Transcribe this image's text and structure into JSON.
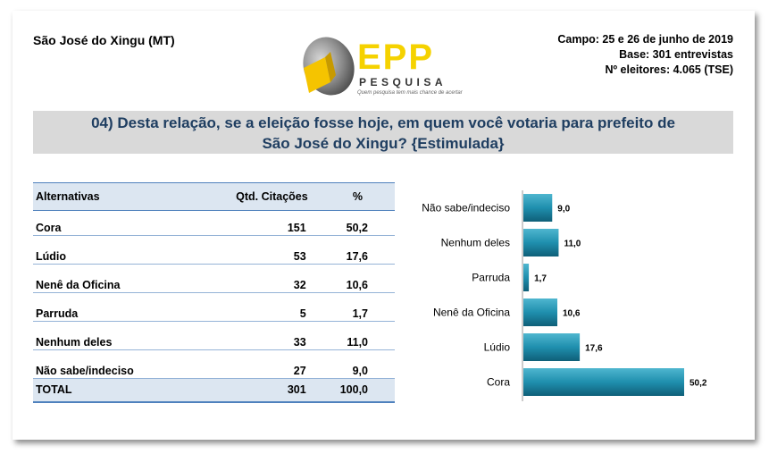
{
  "header": {
    "city": "São José do Xingu (MT)",
    "campo": "Campo: 25 e 26 de junho de 2019",
    "base": "Base: 301 entrevistas",
    "eleitores": "Nº eleitores: 4.065  (TSE)"
  },
  "logo": {
    "name": "EPP",
    "sub": "PESQUISA",
    "tagline": "Quem pesquisa tem mais chance de acertar"
  },
  "question": {
    "line1": "04) Desta relação, se a eleição fosse hoje, em quem você votaria para prefeito de",
    "line2": "São José do Xingu? {Estimulada}"
  },
  "table": {
    "headers": [
      "Alternativas",
      "Qtd. Citações",
      "%"
    ],
    "rows": [
      {
        "name": "Cora",
        "qtd": "151",
        "pct": "50,2"
      },
      {
        "name": "Lúdio",
        "qtd": "53",
        "pct": "17,6"
      },
      {
        "name": "Nenê da Oficina",
        "qtd": "32",
        "pct": "10,6"
      },
      {
        "name": "Parruda",
        "qtd": "5",
        "pct": "1,7"
      },
      {
        "name": "Nenhum deles",
        "qtd": "33",
        "pct": "11,0"
      },
      {
        "name": "Não sabe/indeciso",
        "qtd": "27",
        "pct": "9,0"
      }
    ],
    "total": {
      "name": "TOTAL",
      "qtd": "301",
      "pct": "100,0"
    }
  },
  "chart_data": {
    "type": "bar",
    "orientation": "horizontal",
    "categories": [
      "Não sabe/indeciso",
      "Nenhum deles",
      "Parruda",
      "Nenê da Oficina",
      "Lúdio",
      "Cora"
    ],
    "values": [
      9.0,
      11.0,
      1.7,
      10.6,
      17.6,
      50.2
    ],
    "value_labels": [
      "9,0",
      "11,0",
      "1,7",
      "10,6",
      "17,6",
      "50,2"
    ],
    "xlim": [
      0,
      55
    ],
    "grid": false,
    "legend": "none",
    "bar_color": "#1f8fae"
  }
}
